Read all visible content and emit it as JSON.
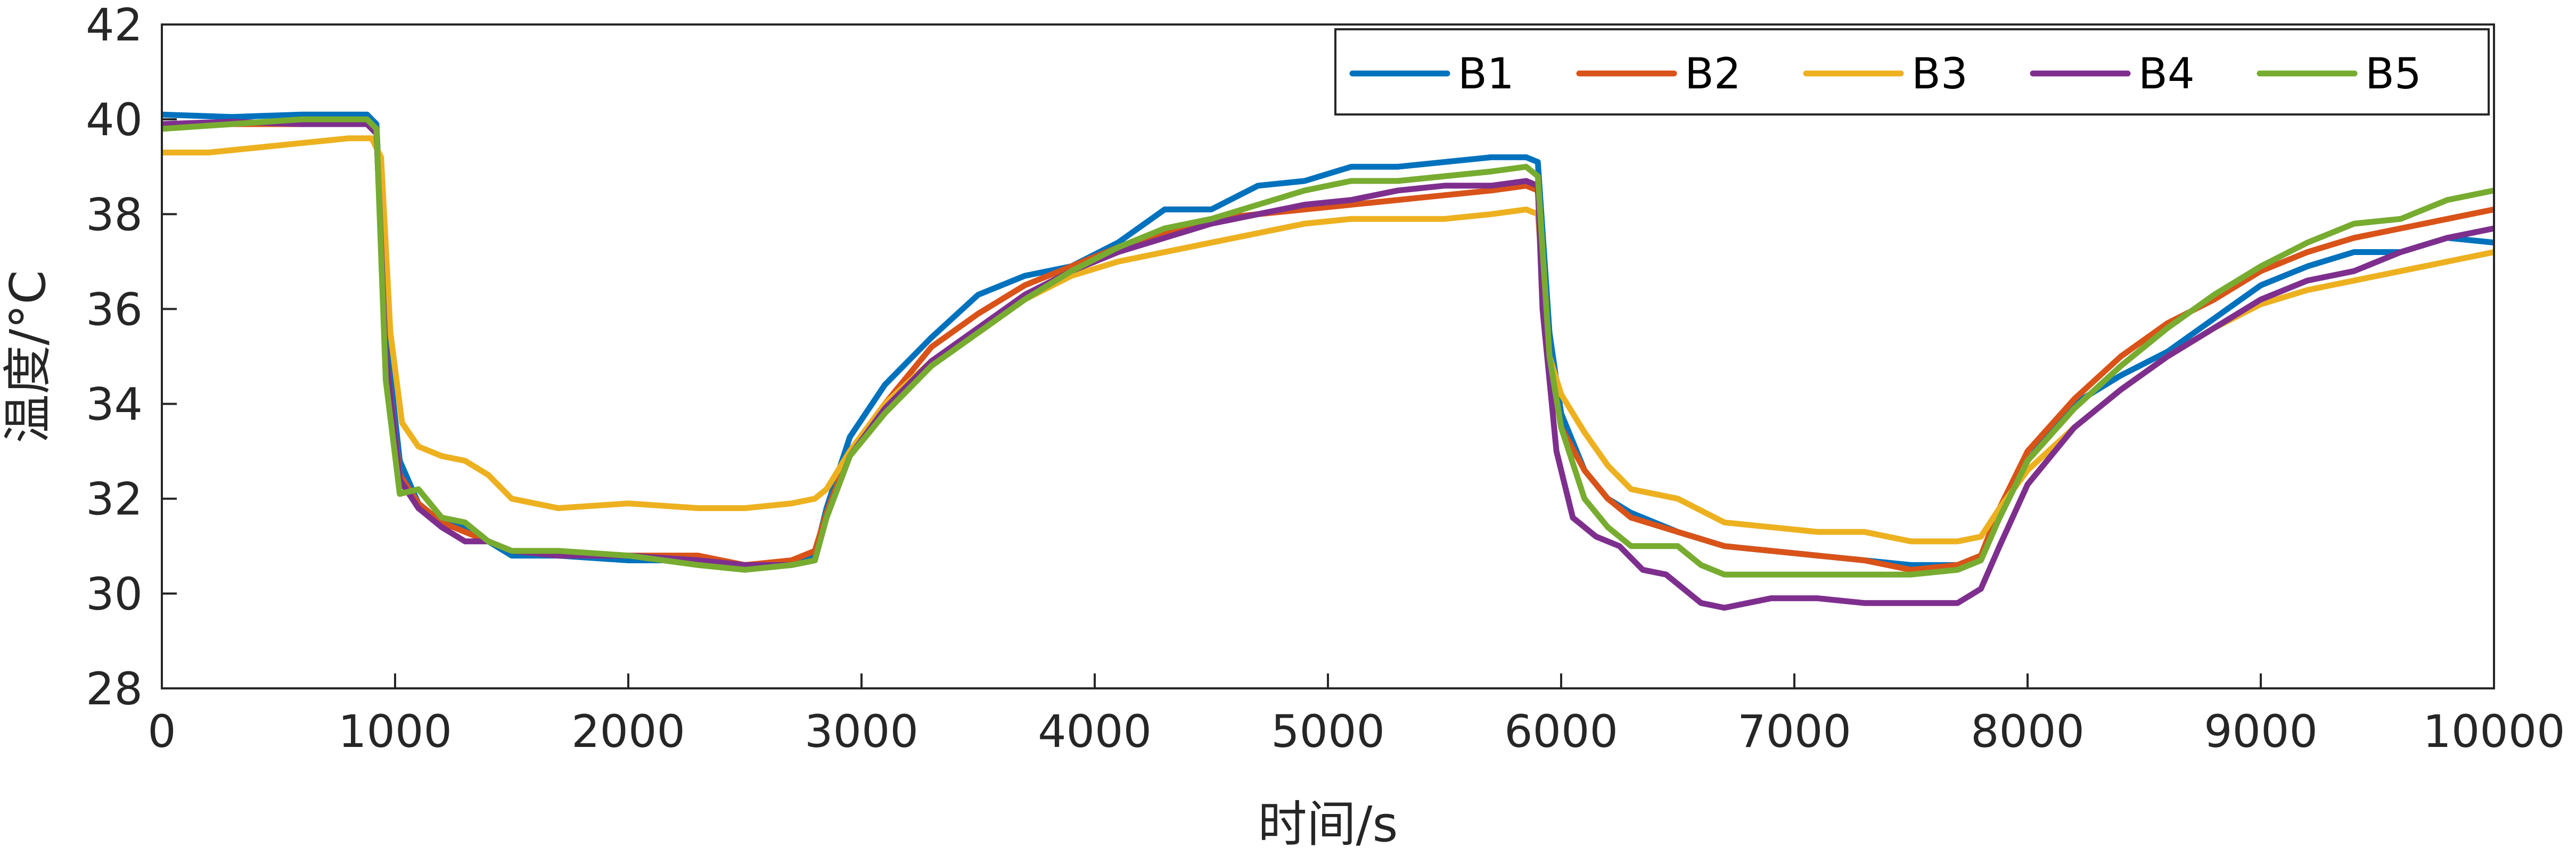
{
  "chart_data": {
    "type": "line",
    "xlabel": "时间/s",
    "ylabel": "温度/°C",
    "xlim": [
      0,
      10000
    ],
    "ylim": [
      28,
      42
    ],
    "xticks": [
      0,
      1000,
      2000,
      3000,
      4000,
      5000,
      6000,
      7000,
      8000,
      9000,
      10000
    ],
    "yticks": [
      28,
      30,
      32,
      34,
      36,
      38,
      40,
      42
    ],
    "grid": false,
    "legend_position": "top-right",
    "legend_orientation": "horizontal",
    "series": [
      {
        "name": "B1",
        "color": "#0072BD",
        "points": [
          [
            0,
            40.1
          ],
          [
            300,
            40.05
          ],
          [
            600,
            40.1
          ],
          [
            880,
            40.1
          ],
          [
            920,
            39.9
          ],
          [
            960,
            35.5
          ],
          [
            1020,
            32.8
          ],
          [
            1100,
            31.9
          ],
          [
            1200,
            31.5
          ],
          [
            1300,
            31.4
          ],
          [
            1400,
            31.1
          ],
          [
            1500,
            30.8
          ],
          [
            1700,
            30.8
          ],
          [
            2000,
            30.7
          ],
          [
            2300,
            30.7
          ],
          [
            2500,
            30.6
          ],
          [
            2700,
            30.6
          ],
          [
            2800,
            30.8
          ],
          [
            2850,
            31.8
          ],
          [
            2950,
            33.3
          ],
          [
            3100,
            34.4
          ],
          [
            3300,
            35.4
          ],
          [
            3500,
            36.3
          ],
          [
            3700,
            36.7
          ],
          [
            3900,
            36.9
          ],
          [
            4100,
            37.4
          ],
          [
            4300,
            38.1
          ],
          [
            4500,
            38.1
          ],
          [
            4700,
            38.6
          ],
          [
            4900,
            38.7
          ],
          [
            5100,
            39.0
          ],
          [
            5300,
            39.0
          ],
          [
            5500,
            39.1
          ],
          [
            5700,
            39.2
          ],
          [
            5850,
            39.2
          ],
          [
            5900,
            39.1
          ],
          [
            5950,
            35.5
          ],
          [
            6000,
            33.8
          ],
          [
            6100,
            32.6
          ],
          [
            6200,
            32.0
          ],
          [
            6300,
            31.7
          ],
          [
            6500,
            31.3
          ],
          [
            6700,
            31.0
          ],
          [
            6900,
            30.9
          ],
          [
            7100,
            30.8
          ],
          [
            7300,
            30.7
          ],
          [
            7500,
            30.6
          ],
          [
            7700,
            30.6
          ],
          [
            7800,
            30.8
          ],
          [
            7880,
            31.6
          ],
          [
            8000,
            32.8
          ],
          [
            8200,
            34.0
          ],
          [
            8400,
            34.6
          ],
          [
            8600,
            35.1
          ],
          [
            8800,
            35.8
          ],
          [
            9000,
            36.5
          ],
          [
            9200,
            36.9
          ],
          [
            9400,
            37.2
          ],
          [
            9600,
            37.2
          ],
          [
            9800,
            37.5
          ],
          [
            10000,
            37.4
          ]
        ]
      },
      {
        "name": "B2",
        "color": "#D95319",
        "points": [
          [
            0,
            39.9
          ],
          [
            300,
            39.9
          ],
          [
            600,
            39.9
          ],
          [
            880,
            39.95
          ],
          [
            920,
            39.8
          ],
          [
            960,
            35.0
          ],
          [
            1020,
            32.5
          ],
          [
            1100,
            31.9
          ],
          [
            1200,
            31.5
          ],
          [
            1300,
            31.3
          ],
          [
            1400,
            31.1
          ],
          [
            1500,
            30.9
          ],
          [
            1700,
            30.8
          ],
          [
            2000,
            30.8
          ],
          [
            2300,
            30.8
          ],
          [
            2500,
            30.6
          ],
          [
            2700,
            30.7
          ],
          [
            2800,
            30.9
          ],
          [
            2850,
            31.7
          ],
          [
            2950,
            33.0
          ],
          [
            3100,
            34.0
          ],
          [
            3300,
            35.2
          ],
          [
            3500,
            35.9
          ],
          [
            3700,
            36.5
          ],
          [
            3900,
            36.9
          ],
          [
            4100,
            37.3
          ],
          [
            4300,
            37.6
          ],
          [
            4500,
            37.9
          ],
          [
            4700,
            38.0
          ],
          [
            4900,
            38.1
          ],
          [
            5100,
            38.2
          ],
          [
            5300,
            38.3
          ],
          [
            5500,
            38.4
          ],
          [
            5700,
            38.5
          ],
          [
            5850,
            38.6
          ],
          [
            5900,
            38.5
          ],
          [
            5950,
            35.0
          ],
          [
            6000,
            33.5
          ],
          [
            6100,
            32.6
          ],
          [
            6200,
            32.0
          ],
          [
            6300,
            31.6
          ],
          [
            6500,
            31.3
          ],
          [
            6700,
            31.0
          ],
          [
            6900,
            30.9
          ],
          [
            7100,
            30.8
          ],
          [
            7300,
            30.7
          ],
          [
            7500,
            30.5
          ],
          [
            7700,
            30.6
          ],
          [
            7800,
            30.8
          ],
          [
            7880,
            31.8
          ],
          [
            8000,
            33.0
          ],
          [
            8200,
            34.1
          ],
          [
            8400,
            35.0
          ],
          [
            8600,
            35.7
          ],
          [
            8800,
            36.2
          ],
          [
            9000,
            36.8
          ],
          [
            9200,
            37.2
          ],
          [
            9400,
            37.5
          ],
          [
            9600,
            37.7
          ],
          [
            9800,
            37.9
          ],
          [
            10000,
            38.1
          ]
        ]
      },
      {
        "name": "B3",
        "color": "#EDB120",
        "points": [
          [
            0,
            39.3
          ],
          [
            200,
            39.3
          ],
          [
            400,
            39.4
          ],
          [
            600,
            39.5
          ],
          [
            800,
            39.6
          ],
          [
            900,
            39.6
          ],
          [
            940,
            39.2
          ],
          [
            980,
            35.5
          ],
          [
            1030,
            33.6
          ],
          [
            1100,
            33.1
          ],
          [
            1200,
            32.9
          ],
          [
            1300,
            32.8
          ],
          [
            1400,
            32.5
          ],
          [
            1500,
            32.0
          ],
          [
            1700,
            31.8
          ],
          [
            2000,
            31.9
          ],
          [
            2300,
            31.8
          ],
          [
            2500,
            31.8
          ],
          [
            2700,
            31.9
          ],
          [
            2800,
            32.0
          ],
          [
            2850,
            32.2
          ],
          [
            2950,
            33.0
          ],
          [
            3100,
            34.0
          ],
          [
            3300,
            34.9
          ],
          [
            3500,
            35.5
          ],
          [
            3700,
            36.2
          ],
          [
            3900,
            36.7
          ],
          [
            4100,
            37.0
          ],
          [
            4300,
            37.2
          ],
          [
            4500,
            37.4
          ],
          [
            4700,
            37.6
          ],
          [
            4900,
            37.8
          ],
          [
            5100,
            37.9
          ],
          [
            5300,
            37.9
          ],
          [
            5500,
            37.9
          ],
          [
            5700,
            38.0
          ],
          [
            5850,
            38.1
          ],
          [
            5900,
            38.0
          ],
          [
            5950,
            35.0
          ],
          [
            6000,
            34.2
          ],
          [
            6100,
            33.4
          ],
          [
            6200,
            32.7
          ],
          [
            6300,
            32.2
          ],
          [
            6500,
            32.0
          ],
          [
            6700,
            31.5
          ],
          [
            6900,
            31.4
          ],
          [
            7100,
            31.3
          ],
          [
            7300,
            31.3
          ],
          [
            7500,
            31.1
          ],
          [
            7700,
            31.1
          ],
          [
            7800,
            31.2
          ],
          [
            7880,
            31.8
          ],
          [
            8000,
            32.6
          ],
          [
            8200,
            33.5
          ],
          [
            8400,
            34.3
          ],
          [
            8600,
            35.0
          ],
          [
            8800,
            35.6
          ],
          [
            9000,
            36.1
          ],
          [
            9200,
            36.4
          ],
          [
            9400,
            36.6
          ],
          [
            9600,
            36.8
          ],
          [
            9800,
            37.0
          ],
          [
            10000,
            37.2
          ]
        ]
      },
      {
        "name": "B4",
        "color": "#7E2F8E",
        "points": [
          [
            0,
            39.9
          ],
          [
            300,
            39.95
          ],
          [
            600,
            39.9
          ],
          [
            880,
            39.9
          ],
          [
            920,
            39.7
          ],
          [
            960,
            35.0
          ],
          [
            1020,
            32.4
          ],
          [
            1100,
            31.8
          ],
          [
            1200,
            31.4
          ],
          [
            1300,
            31.1
          ],
          [
            1400,
            31.1
          ],
          [
            1500,
            30.9
          ],
          [
            1700,
            30.8
          ],
          [
            2000,
            30.8
          ],
          [
            2300,
            30.7
          ],
          [
            2500,
            30.6
          ],
          [
            2700,
            30.6
          ],
          [
            2800,
            30.7
          ],
          [
            2850,
            31.6
          ],
          [
            2950,
            32.9
          ],
          [
            3100,
            33.9
          ],
          [
            3300,
            34.9
          ],
          [
            3500,
            35.6
          ],
          [
            3700,
            36.3
          ],
          [
            3900,
            36.8
          ],
          [
            4100,
            37.2
          ],
          [
            4300,
            37.5
          ],
          [
            4500,
            37.8
          ],
          [
            4700,
            38.0
          ],
          [
            4900,
            38.2
          ],
          [
            5100,
            38.3
          ],
          [
            5300,
            38.5
          ],
          [
            5500,
            38.6
          ],
          [
            5700,
            38.6
          ],
          [
            5850,
            38.7
          ],
          [
            5900,
            38.6
          ],
          [
            5920,
            36.0
          ],
          [
            5980,
            33.0
          ],
          [
            6050,
            31.6
          ],
          [
            6150,
            31.2
          ],
          [
            6250,
            31.0
          ],
          [
            6350,
            30.5
          ],
          [
            6450,
            30.4
          ],
          [
            6600,
            29.8
          ],
          [
            6700,
            29.7
          ],
          [
            6900,
            29.9
          ],
          [
            7100,
            29.9
          ],
          [
            7300,
            29.8
          ],
          [
            7500,
            29.8
          ],
          [
            7700,
            29.8
          ],
          [
            7800,
            30.1
          ],
          [
            7880,
            31.0
          ],
          [
            8000,
            32.3
          ],
          [
            8200,
            33.5
          ],
          [
            8400,
            34.3
          ],
          [
            8600,
            35.0
          ],
          [
            8800,
            35.6
          ],
          [
            9000,
            36.2
          ],
          [
            9200,
            36.6
          ],
          [
            9400,
            36.8
          ],
          [
            9600,
            37.2
          ],
          [
            9800,
            37.5
          ],
          [
            10000,
            37.7
          ]
        ]
      },
      {
        "name": "B5",
        "color": "#77AC30",
        "points": [
          [
            0,
            39.8
          ],
          [
            300,
            39.9
          ],
          [
            600,
            40.0
          ],
          [
            880,
            40.0
          ],
          [
            920,
            39.8
          ],
          [
            960,
            34.5
          ],
          [
            1020,
            32.1
          ],
          [
            1100,
            32.2
          ],
          [
            1200,
            31.6
          ],
          [
            1300,
            31.5
          ],
          [
            1400,
            31.1
          ],
          [
            1500,
            30.9
          ],
          [
            1700,
            30.9
          ],
          [
            2000,
            30.8
          ],
          [
            2300,
            30.6
          ],
          [
            2500,
            30.5
          ],
          [
            2700,
            30.6
          ],
          [
            2800,
            30.7
          ],
          [
            2850,
            31.6
          ],
          [
            2950,
            32.9
          ],
          [
            3100,
            33.8
          ],
          [
            3300,
            34.8
          ],
          [
            3500,
            35.5
          ],
          [
            3700,
            36.2
          ],
          [
            3900,
            36.8
          ],
          [
            4100,
            37.3
          ],
          [
            4300,
            37.7
          ],
          [
            4500,
            37.9
          ],
          [
            4700,
            38.2
          ],
          [
            4900,
            38.5
          ],
          [
            5100,
            38.7
          ],
          [
            5300,
            38.7
          ],
          [
            5500,
            38.8
          ],
          [
            5700,
            38.9
          ],
          [
            5850,
            39.0
          ],
          [
            5900,
            38.8
          ],
          [
            5950,
            35.0
          ],
          [
            6000,
            33.5
          ],
          [
            6100,
            32.0
          ],
          [
            6200,
            31.4
          ],
          [
            6300,
            31.0
          ],
          [
            6500,
            31.0
          ],
          [
            6600,
            30.6
          ],
          [
            6700,
            30.4
          ],
          [
            6900,
            30.4
          ],
          [
            7100,
            30.4
          ],
          [
            7300,
            30.4
          ],
          [
            7500,
            30.4
          ],
          [
            7700,
            30.5
          ],
          [
            7800,
            30.7
          ],
          [
            7880,
            31.6
          ],
          [
            8000,
            32.8
          ],
          [
            8200,
            33.9
          ],
          [
            8400,
            34.8
          ],
          [
            8600,
            35.6
          ],
          [
            8800,
            36.3
          ],
          [
            9000,
            36.9
          ],
          [
            9200,
            37.4
          ],
          [
            9400,
            37.8
          ],
          [
            9600,
            37.9
          ],
          [
            9800,
            38.3
          ],
          [
            10000,
            38.5
          ]
        ]
      }
    ]
  }
}
